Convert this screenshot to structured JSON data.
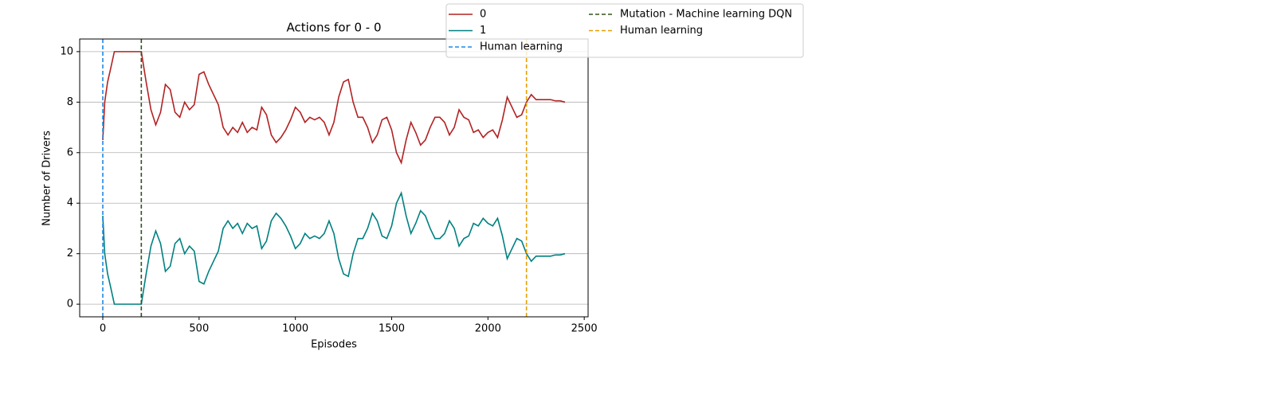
{
  "chart_data": {
    "type": "line",
    "title": "Actions for 0 - 0",
    "xlabel": "Episodes",
    "ylabel": "Number of Drivers",
    "x": [
      0,
      10,
      25,
      40,
      60,
      100,
      150,
      200,
      225,
      250,
      275,
      300,
      325,
      350,
      375,
      400,
      425,
      450,
      475,
      500,
      525,
      550,
      575,
      600,
      625,
      650,
      675,
      700,
      725,
      750,
      775,
      800,
      825,
      850,
      875,
      900,
      925,
      950,
      975,
      1000,
      1025,
      1050,
      1075,
      1100,
      1125,
      1150,
      1175,
      1200,
      1225,
      1250,
      1275,
      1300,
      1325,
      1350,
      1375,
      1400,
      1425,
      1450,
      1475,
      1500,
      1525,
      1550,
      1575,
      1600,
      1625,
      1650,
      1675,
      1700,
      1725,
      1750,
      1775,
      1800,
      1825,
      1850,
      1875,
      1900,
      1925,
      1950,
      1975,
      2000,
      2025,
      2050,
      2075,
      2100,
      2125,
      2150,
      2175,
      2200,
      2225,
      2250,
      2275,
      2300,
      2325,
      2350,
      2375,
      2400
    ],
    "series": [
      {
        "name": "0",
        "color": "#b22222",
        "values": [
          6.5,
          8,
          8.8,
          9.3,
          10,
          10,
          10,
          10,
          8.8,
          7.7,
          7.1,
          7.6,
          8.7,
          8.5,
          7.6,
          7.4,
          8.0,
          7.7,
          7.9,
          9.1,
          9.2,
          8.7,
          8.3,
          7.9,
          7.0,
          6.7,
          7.0,
          6.8,
          7.2,
          6.8,
          7.0,
          6.9,
          7.8,
          7.5,
          6.7,
          6.4,
          6.6,
          6.9,
          7.3,
          7.8,
          7.6,
          7.2,
          7.4,
          7.3,
          7.4,
          7.2,
          6.7,
          7.2,
          8.2,
          8.8,
          8.9,
          8.0,
          7.4,
          7.4,
          7.0,
          6.4,
          6.7,
          7.3,
          7.4,
          6.9,
          6.0,
          5.6,
          6.5,
          7.2,
          6.8,
          6.3,
          6.5,
          7.0,
          7.4,
          7.4,
          7.2,
          6.7,
          7.0,
          7.7,
          7.4,
          7.3,
          6.8,
          6.9,
          6.6,
          6.8,
          6.9,
          6.6,
          7.3,
          8.2,
          7.8,
          7.4,
          7.5,
          8.0,
          8.3,
          8.1,
          8.1,
          8.1,
          8.1,
          8.05,
          8.05,
          8.0
        ]
      },
      {
        "name": "1",
        "color": "#008080",
        "values": [
          3.5,
          2.0,
          1.2,
          0.7,
          0,
          0,
          0,
          0,
          1.2,
          2.3,
          2.9,
          2.4,
          1.3,
          1.5,
          2.4,
          2.6,
          2.0,
          2.3,
          2.1,
          0.9,
          0.8,
          1.3,
          1.7,
          2.1,
          3.0,
          3.3,
          3.0,
          3.2,
          2.8,
          3.2,
          3.0,
          3.1,
          2.2,
          2.5,
          3.3,
          3.6,
          3.4,
          3.1,
          2.7,
          2.2,
          2.4,
          2.8,
          2.6,
          2.7,
          2.6,
          2.8,
          3.3,
          2.8,
          1.8,
          1.2,
          1.1,
          2.0,
          2.6,
          2.6,
          3.0,
          3.6,
          3.3,
          2.7,
          2.6,
          3.1,
          4.0,
          4.4,
          3.5,
          2.8,
          3.2,
          3.7,
          3.5,
          3.0,
          2.6,
          2.6,
          2.8,
          3.3,
          3.0,
          2.3,
          2.6,
          2.7,
          3.2,
          3.1,
          3.4,
          3.2,
          3.1,
          3.4,
          2.7,
          1.8,
          2.2,
          2.6,
          2.5,
          2.0,
          1.7,
          1.9,
          1.9,
          1.9,
          1.9,
          1.95,
          1.95,
          2.0
        ]
      }
    ],
    "vlines": [
      {
        "name": "Human learning",
        "x": 0,
        "color": "#1e88e5"
      },
      {
        "name": "Mutation - Machine learning DQN",
        "x": 200,
        "color": "#33521f"
      },
      {
        "name": "Human learning",
        "x": 2200,
        "color": "#e69f00"
      }
    ],
    "xlim": [
      -120,
      2520
    ],
    "xticks": [
      0,
      500,
      1000,
      1500,
      2000,
      2500
    ],
    "ylim": [
      -0.5,
      10.5
    ],
    "yticks": [
      0,
      2,
      4,
      6,
      8,
      10
    ],
    "grid": "y"
  }
}
